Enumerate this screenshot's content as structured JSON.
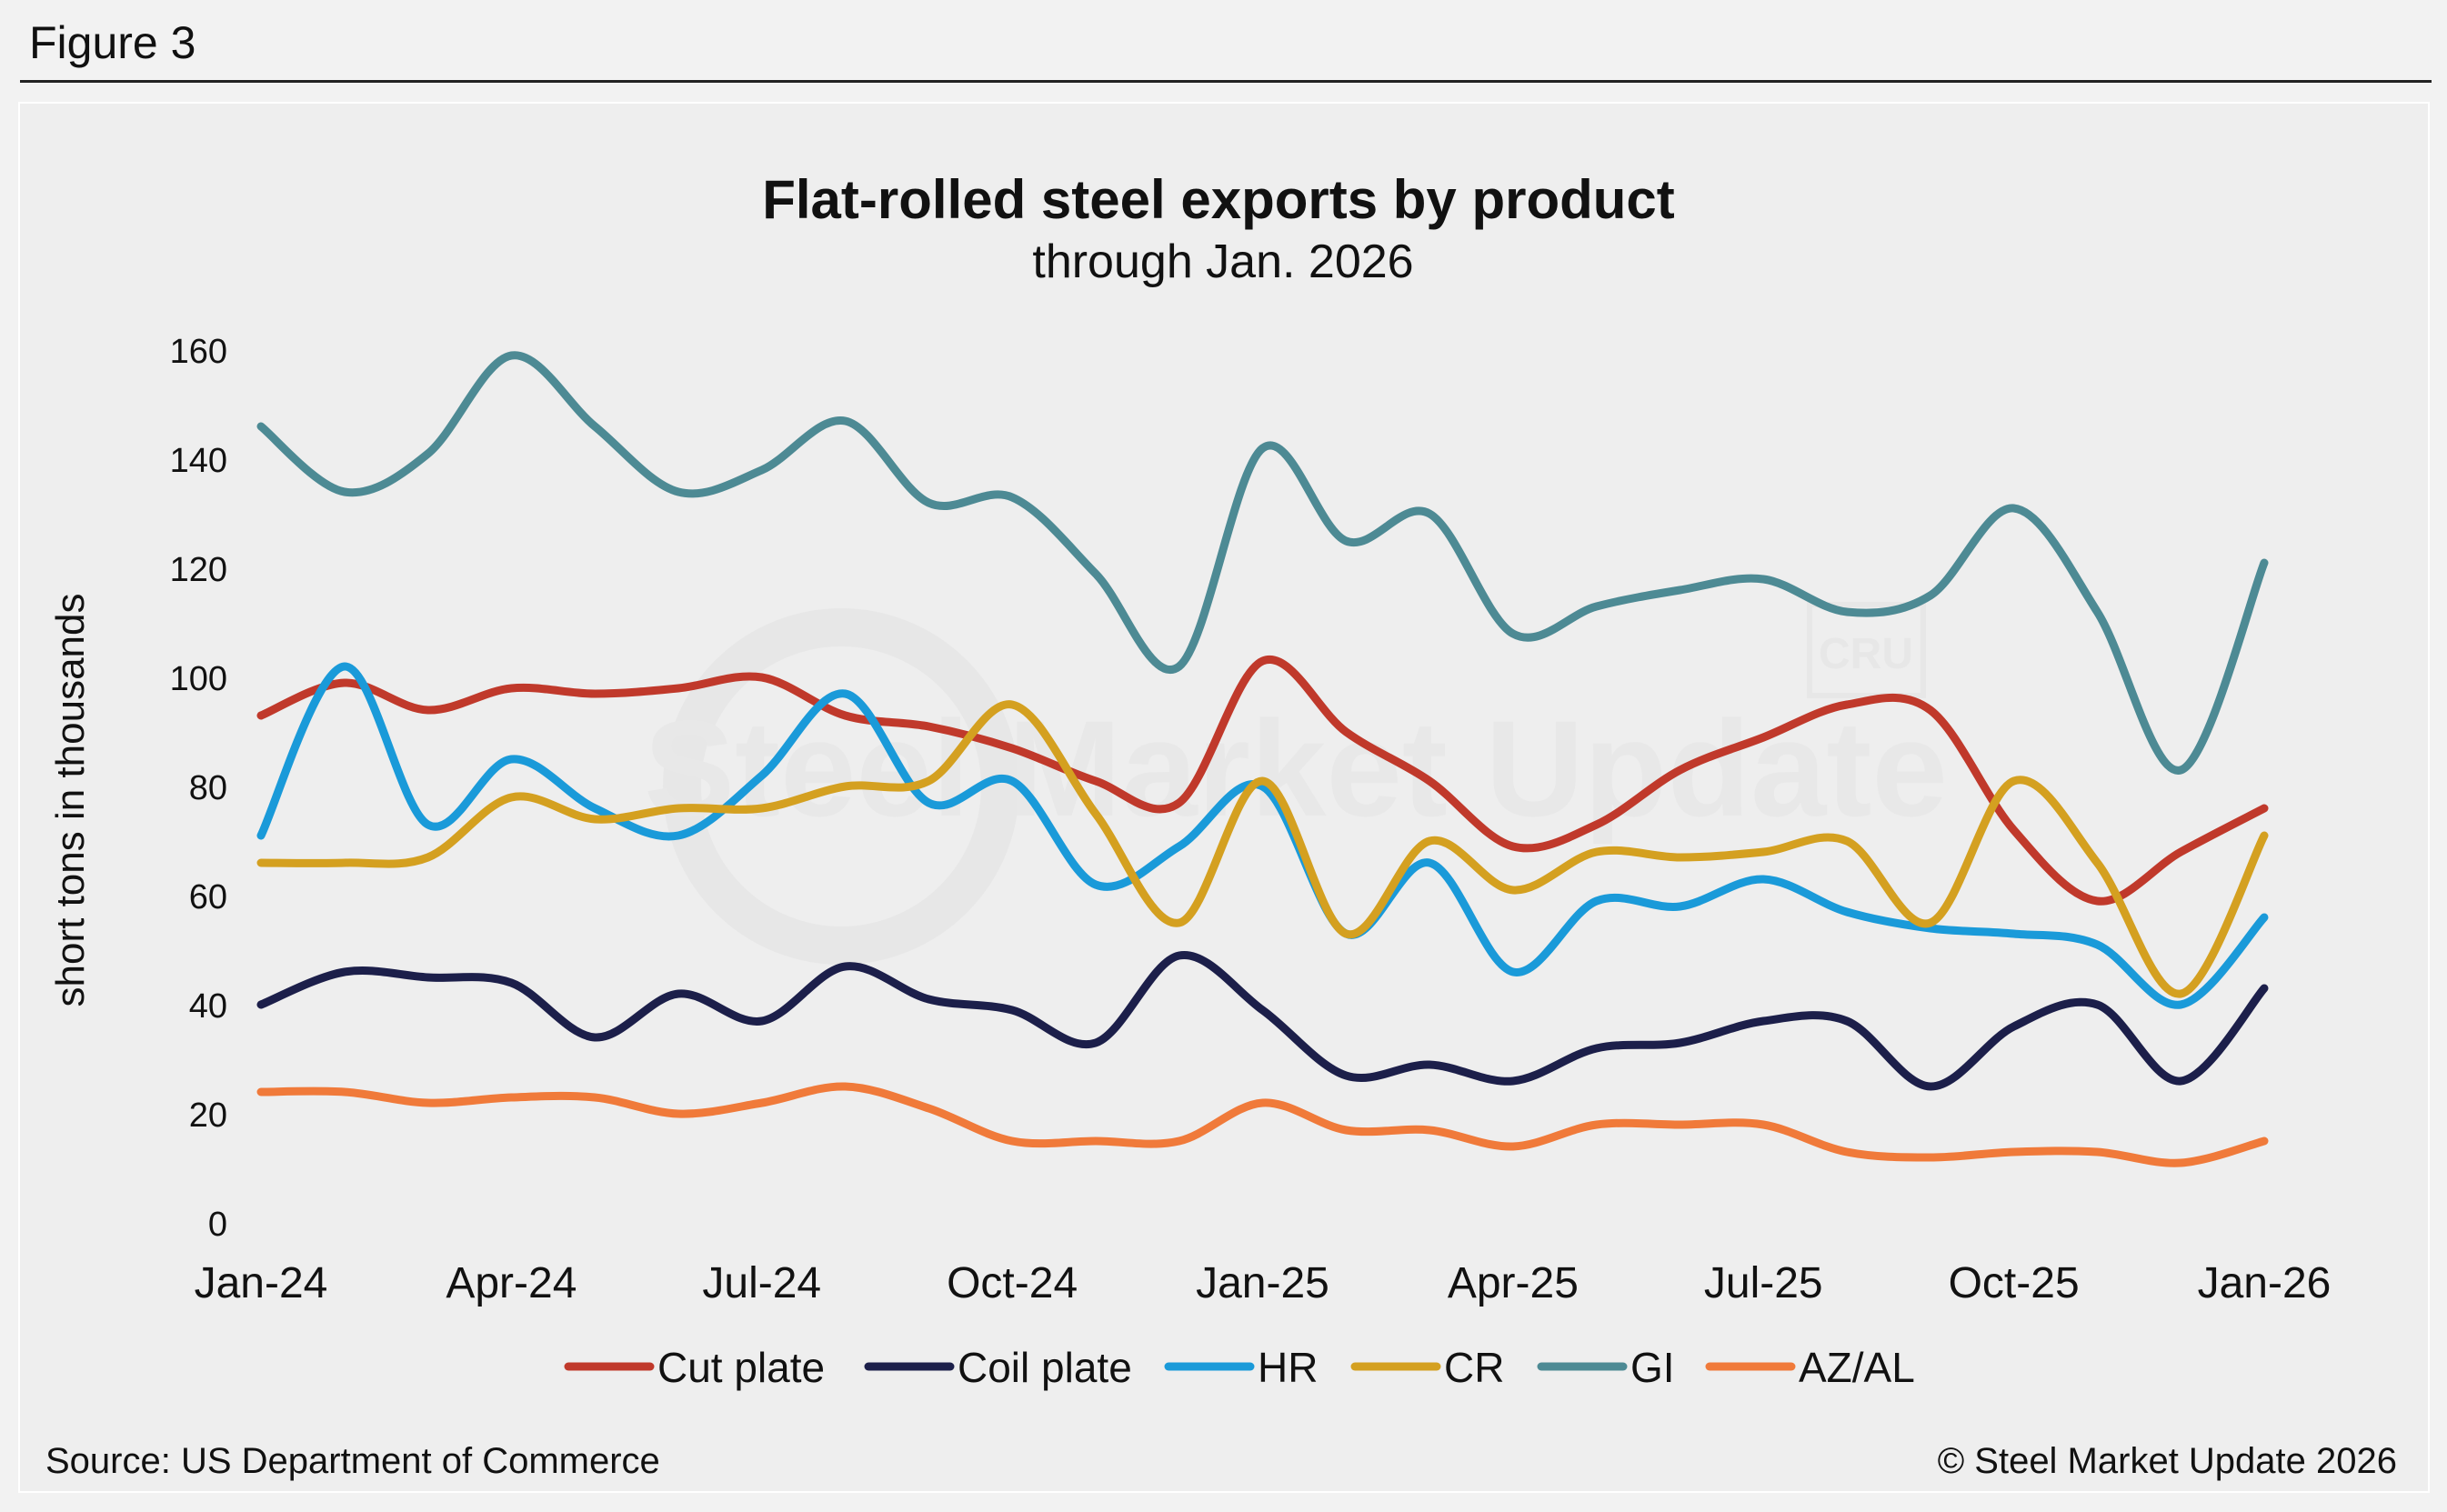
{
  "figure_label": "Figure 3",
  "source": "Source: US Department of Commerce",
  "copyright": "© Steel Market Update 2026",
  "watermark": {
    "text": "Steel Market Update",
    "badge": "CRU"
  },
  "chart_data": {
    "type": "line",
    "title": "Flat-rolled steel exports by product",
    "subtitle": "through Jan. 2026",
    "ylabel": "short tons in thousands",
    "xlabel": "",
    "ylim": [
      0,
      160
    ],
    "yticks": [
      0,
      20,
      40,
      60,
      80,
      100,
      120,
      140,
      160
    ],
    "grid": false,
    "legend": "bottom",
    "x": [
      "Jan-24",
      "Feb-24",
      "Mar-24",
      "Apr-24",
      "May-24",
      "Jun-24",
      "Jul-24",
      "Aug-24",
      "Sep-24",
      "Oct-24",
      "Nov-24",
      "Dec-24",
      "Jan-25",
      "Feb-25",
      "Mar-25",
      "Apr-25",
      "May-25",
      "Jun-25",
      "Jul-25",
      "Aug-25",
      "Sep-25",
      "Oct-25",
      "Nov-25",
      "Dec-25",
      "Jan-26"
    ],
    "xtick_labels": [
      "Jan-24",
      "Apr-24",
      "Jul-24",
      "Oct-24",
      "Jan-25",
      "Apr-25",
      "Jul-25",
      "Oct-25",
      "Jan-26"
    ],
    "series": [
      {
        "name": "Cut plate",
        "color": "#c0392b",
        "values": [
          93,
          99,
          94,
          98,
          97,
          98,
          100,
          93,
          91,
          87,
          81,
          77,
          103,
          90,
          81,
          69,
          73,
          83,
          89,
          95,
          94,
          72,
          59,
          68,
          76
        ]
      },
      {
        "name": "Coil plate",
        "color": "#1c1f4a",
        "values": [
          40,
          46,
          45,
          44,
          34,
          42,
          37,
          47,
          41,
          39,
          33,
          49,
          39,
          27,
          29,
          26,
          32,
          33,
          37,
          37,
          25,
          36,
          40,
          26,
          43
        ]
      },
      {
        "name": "HR",
        "color": "#1a9ad9",
        "values": [
          71,
          102,
          73,
          85,
          76,
          71,
          82,
          97,
          77,
          81,
          62,
          69,
          80,
          53,
          66,
          46,
          59,
          58,
          63,
          57,
          54,
          53,
          51,
          40,
          56
        ]
      },
      {
        "name": "CR",
        "color": "#d4a020",
        "values": [
          66,
          66,
          67,
          78,
          74,
          76,
          76,
          80,
          81,
          95,
          75,
          55,
          81,
          53,
          70,
          61,
          68,
          67,
          68,
          70,
          55,
          81,
          66,
          42,
          71
        ]
      },
      {
        "name": "GI",
        "color": "#4d8a94",
        "values": [
          146,
          134,
          141,
          159,
          146,
          134,
          138,
          147,
          132,
          133,
          119,
          102,
          142,
          125,
          130,
          108,
          113,
          116,
          118,
          112,
          115,
          131,
          112,
          83,
          121
        ]
      },
      {
        "name": "AZ/AL",
        "color": "#f07a3a",
        "values": [
          24,
          24,
          22,
          23,
          23,
          20,
          22,
          25,
          21,
          15,
          15,
          15,
          22,
          17,
          17,
          14,
          18,
          18,
          18,
          13,
          12,
          13,
          13,
          11,
          15
        ]
      }
    ]
  }
}
